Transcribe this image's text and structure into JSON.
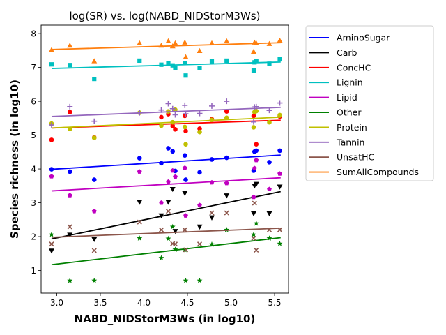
{
  "chart_data": {
    "type": "scatter",
    "title": "log(SR) vs. log(NABD_NIDStorM3Ws)",
    "xlabel": "NABD_NIDStorM3Ws (in log10)",
    "ylabel": "Species richness (in log10)",
    "xlim": [
      2.82,
      5.66
    ],
    "ylim": [
      0.33,
      8.25
    ],
    "xticks": [
      3.0,
      3.5,
      4.0,
      4.5,
      5.0,
      5.5
    ],
    "xtick_labels": [
      "3.0",
      "3.5",
      "4.0",
      "4.5",
      "5.0",
      "5.5"
    ],
    "yticks": [
      1,
      2,
      3,
      4,
      5,
      6,
      7,
      8
    ],
    "ytick_labels": [
      "1",
      "2",
      "3",
      "4",
      "5",
      "6",
      "7",
      "8"
    ],
    "legend_position": "outside-right",
    "series": [
      {
        "name": "AminoSugar",
        "color": "#0000ff",
        "marker": "circle",
        "points": [
          [
            2.94,
            3.99
          ],
          [
            3.15,
            3.92
          ],
          [
            3.43,
            3.68
          ],
          [
            3.95,
            4.32
          ],
          [
            4.2,
            4.17
          ],
          [
            4.28,
            4.61
          ],
          [
            4.33,
            4.52
          ],
          [
            4.36,
            3.94
          ],
          [
            4.47,
            4.4
          ],
          [
            4.48,
            3.68
          ],
          [
            4.64,
            3.9
          ],
          [
            4.78,
            4.28
          ],
          [
            4.95,
            4.33
          ],
          [
            5.26,
            3.95
          ],
          [
            5.27,
            4.51
          ],
          [
            5.29,
            4.54
          ],
          [
            5.44,
            4.2
          ],
          [
            5.56,
            4.54
          ]
        ],
        "fit": [
          [
            2.94,
            3.99
          ],
          [
            5.57,
            4.41
          ]
        ]
      },
      {
        "name": "Carb",
        "color": "#000000",
        "marker": "triangle-down",
        "points": [
          [
            2.94,
            1.58
          ],
          [
            3.15,
            2.05
          ],
          [
            3.43,
            1.92
          ],
          [
            3.95,
            3.02
          ],
          [
            4.2,
            2.62
          ],
          [
            4.28,
            3.02
          ],
          [
            4.33,
            3.4
          ],
          [
            4.36,
            2.16
          ],
          [
            4.47,
            3.28
          ],
          [
            4.64,
            2.29
          ],
          [
            4.78,
            2.56
          ],
          [
            4.95,
            3.21
          ],
          [
            5.26,
            2.68
          ],
          [
            5.27,
            3.5
          ],
          [
            5.29,
            3.55
          ],
          [
            5.44,
            2.68
          ],
          [
            5.56,
            3.47
          ]
        ],
        "fit": [
          [
            2.94,
            1.93
          ],
          [
            5.57,
            3.33
          ]
        ]
      },
      {
        "name": "ConcHC",
        "color": "#ff0000",
        "marker": "circle",
        "points": [
          [
            2.94,
            4.86
          ],
          [
            3.15,
            5.68
          ],
          [
            3.43,
            4.93
          ],
          [
            4.2,
            5.53
          ],
          [
            4.28,
            5.62
          ],
          [
            4.33,
            5.27
          ],
          [
            4.36,
            5.17
          ],
          [
            4.47,
            5.57
          ],
          [
            4.48,
            5.12
          ],
          [
            4.64,
            5.19
          ],
          [
            4.78,
            5.47
          ],
          [
            4.95,
            5.7
          ],
          [
            5.26,
            5.57
          ],
          [
            5.29,
            4.73
          ],
          [
            5.56,
            5.55
          ]
        ],
        "fit": [
          [
            2.94,
            5.21
          ],
          [
            5.57,
            5.44
          ]
        ]
      },
      {
        "name": "Lignin",
        "color": "#00c0c0",
        "marker": "square",
        "points": [
          [
            2.94,
            7.09
          ],
          [
            3.15,
            7.07
          ],
          [
            3.43,
            6.66
          ],
          [
            3.95,
            7.2
          ],
          [
            4.2,
            7.08
          ],
          [
            4.28,
            7.13
          ],
          [
            4.33,
            7.06
          ],
          [
            4.36,
            6.98
          ],
          [
            4.47,
            7.13
          ],
          [
            4.48,
            6.76
          ],
          [
            4.64,
            6.99
          ],
          [
            4.78,
            7.18
          ],
          [
            4.95,
            7.2
          ],
          [
            5.26,
            6.91
          ],
          [
            5.27,
            7.15
          ],
          [
            5.29,
            7.19
          ],
          [
            5.44,
            7.11
          ],
          [
            5.56,
            7.24
          ]
        ],
        "fit": [
          [
            2.94,
            6.97
          ],
          [
            5.57,
            7.16
          ]
        ]
      },
      {
        "name": "Lipid",
        "color": "#c000c0",
        "marker": "pentagon",
        "points": [
          [
            2.94,
            3.78
          ],
          [
            3.15,
            3.22
          ],
          [
            3.43,
            2.75
          ],
          [
            3.95,
            3.92
          ],
          [
            4.2,
            3.0
          ],
          [
            4.28,
            3.62
          ],
          [
            4.33,
            3.95
          ],
          [
            4.36,
            3.77
          ],
          [
            4.47,
            4.03
          ],
          [
            4.48,
            2.62
          ],
          [
            4.64,
            2.93
          ],
          [
            4.78,
            3.6
          ],
          [
            4.95,
            3.58
          ],
          [
            5.26,
            3.17
          ],
          [
            5.27,
            4.02
          ],
          [
            5.29,
            4.26
          ],
          [
            5.44,
            3.4
          ],
          [
            5.56,
            3.86
          ]
        ],
        "fit": [
          [
            2.94,
            3.35
          ],
          [
            5.57,
            3.74
          ]
        ]
      },
      {
        "name": "Other",
        "color": "#008000",
        "marker": "star",
        "points": [
          [
            2.94,
            2.06
          ],
          [
            3.15,
            0.7
          ],
          [
            3.43,
            0.7
          ],
          [
            3.95,
            1.95
          ],
          [
            4.2,
            1.37
          ],
          [
            4.28,
            1.94
          ],
          [
            4.33,
            2.29
          ],
          [
            4.36,
            1.62
          ],
          [
            4.47,
            1.61
          ],
          [
            4.48,
            0.7
          ],
          [
            4.64,
            0.7
          ],
          [
            4.78,
            1.77
          ],
          [
            4.95,
            2.2
          ],
          [
            5.26,
            2.06
          ],
          [
            5.29,
            2.39
          ],
          [
            5.44,
            1.95
          ],
          [
            5.56,
            1.79
          ]
        ],
        "fit": [
          [
            2.94,
            1.17
          ],
          [
            5.57,
            1.97
          ]
        ]
      },
      {
        "name": "Protein",
        "color": "#c0c000",
        "marker": "circle",
        "points": [
          [
            2.94,
            5.34
          ],
          [
            3.15,
            5.18
          ],
          [
            3.43,
            4.92
          ],
          [
            3.95,
            5.66
          ],
          [
            4.2,
            5.28
          ],
          [
            4.28,
            5.7
          ],
          [
            4.33,
            5.38
          ],
          [
            4.36,
            5.75
          ],
          [
            4.47,
            5.24
          ],
          [
            4.48,
            4.73
          ],
          [
            4.64,
            5.09
          ],
          [
            4.78,
            5.45
          ],
          [
            4.95,
            5.51
          ],
          [
            5.26,
            5.23
          ],
          [
            5.27,
            5.68
          ],
          [
            5.29,
            5.71
          ],
          [
            5.44,
            5.38
          ],
          [
            5.56,
            5.59
          ]
        ],
        "fit": [
          [
            2.94,
            5.21
          ],
          [
            5.57,
            5.53
          ]
        ]
      },
      {
        "name": "Tannin",
        "color": "#9467bd",
        "marker": "plus",
        "points": [
          [
            2.94,
            5.3
          ],
          [
            3.15,
            5.84
          ],
          [
            3.43,
            5.41
          ],
          [
            3.95,
            5.66
          ],
          [
            4.2,
            5.74
          ],
          [
            4.28,
            5.93
          ],
          [
            4.33,
            5.78
          ],
          [
            4.36,
            5.6
          ],
          [
            4.47,
            5.88
          ],
          [
            4.48,
            5.63
          ],
          [
            4.64,
            5.64
          ],
          [
            4.78,
            5.86
          ],
          [
            4.95,
            6.0
          ],
          [
            5.26,
            5.39
          ],
          [
            5.27,
            5.83
          ],
          [
            5.29,
            5.84
          ],
          [
            5.44,
            5.73
          ],
          [
            5.56,
            5.95
          ]
        ],
        "fit": [
          [
            2.94,
            5.55
          ],
          [
            5.57,
            5.82
          ]
        ]
      },
      {
        "name": "UnsatHC",
        "color": "#8c564b",
        "marker": "x",
        "points": [
          [
            2.94,
            1.78
          ],
          [
            3.15,
            2.29
          ],
          [
            3.43,
            1.59
          ],
          [
            3.95,
            2.43
          ],
          [
            4.2,
            2.2
          ],
          [
            4.28,
            2.75
          ],
          [
            4.33,
            1.79
          ],
          [
            4.36,
            1.78
          ],
          [
            4.47,
            2.2
          ],
          [
            4.48,
            1.61
          ],
          [
            4.64,
            1.78
          ],
          [
            4.78,
            2.7
          ],
          [
            4.95,
            2.7
          ],
          [
            5.26,
            1.95
          ],
          [
            5.27,
            2.99
          ],
          [
            5.29,
            1.6
          ],
          [
            5.44,
            2.2
          ],
          [
            5.56,
            2.2
          ]
        ],
        "fit": [
          [
            2.94,
            1.98
          ],
          [
            5.57,
            2.25
          ]
        ]
      },
      {
        "name": "SumAllCompounds",
        "color": "#ff7f0e",
        "marker": "triangle-up",
        "points": [
          [
            2.94,
            7.52
          ],
          [
            3.15,
            7.65
          ],
          [
            3.43,
            7.19
          ],
          [
            3.95,
            7.72
          ],
          [
            4.2,
            7.65
          ],
          [
            4.28,
            7.78
          ],
          [
            4.33,
            7.63
          ],
          [
            4.36,
            7.72
          ],
          [
            4.47,
            7.74
          ],
          [
            4.48,
            7.31
          ],
          [
            4.64,
            7.49
          ],
          [
            4.78,
            7.72
          ],
          [
            4.95,
            7.78
          ],
          [
            5.26,
            7.47
          ],
          [
            5.27,
            7.74
          ],
          [
            5.29,
            7.72
          ],
          [
            5.44,
            7.7
          ],
          [
            5.56,
            7.8
          ]
        ],
        "fit": [
          [
            2.94,
            7.53
          ],
          [
            5.57,
            7.73
          ]
        ]
      }
    ]
  }
}
